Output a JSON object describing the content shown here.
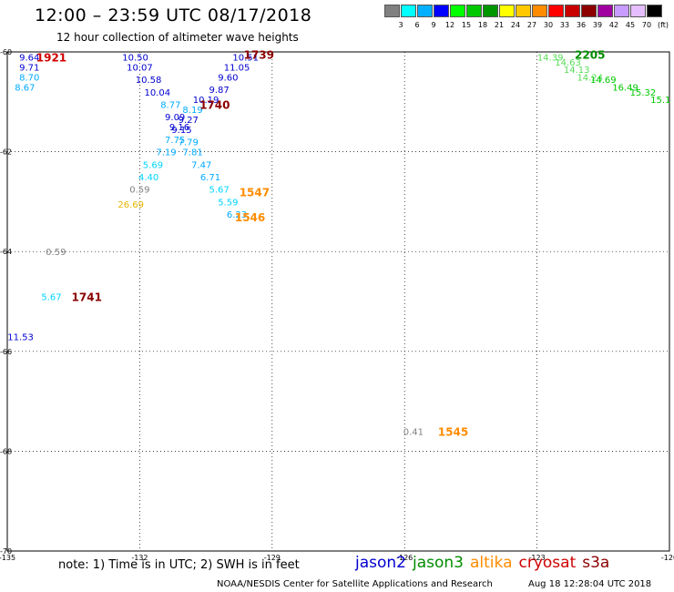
{
  "title": "12:00 – 23:59 UTC 08/17/2018",
  "subtitle": "12 hour collection of altimeter wave heights",
  "colorbar": {
    "unit": "(ft)",
    "colors": [
      "#808080",
      "#00ffff",
      "#00b0ff",
      "#0000ff",
      "#00ff00",
      "#00c800",
      "#009600",
      "#ffff00",
      "#ffc800",
      "#ff8c00",
      "#ff0000",
      "#c80000",
      "#8c0000",
      "#a000a0",
      "#c89bff",
      "#e6beff",
      "#000000"
    ],
    "labels": [
      "3",
      "6",
      "9",
      "12",
      "15",
      "18",
      "21",
      "24",
      "27",
      "30",
      "33",
      "36",
      "39",
      "42",
      "45",
      "70"
    ]
  },
  "note": "note: 1) Time is in UTC; 2) SWH is in feet",
  "legend": [
    {
      "name": "jason2",
      "color": "#0000d0"
    },
    {
      "name": "jason3",
      "color": "#008c00"
    },
    {
      "name": "altika",
      "color": "#ff8c00"
    },
    {
      "name": "cryosat",
      "color": "#d00000"
    },
    {
      "name": "s3a",
      "color": "#8c0000"
    }
  ],
  "credit": "NOAA/NESDIS Center for Satellite Applications and Research",
  "timestamp": "Aug 18 12:28:04 UTC 2018",
  "chart_data": {
    "type": "scatter",
    "xlim": [
      -135,
      -120
    ],
    "ylim": [
      -70,
      -60
    ],
    "xticks": [
      "-135",
      "-132",
      "-129",
      "-126",
      "-123",
      "-120"
    ],
    "yticks": [
      "-60",
      "-62",
      "-64",
      "-66",
      "-68",
      "-70"
    ],
    "grid": true,
    "points": [
      {
        "x": -134.5,
        "y": -60.1,
        "label": "9.64",
        "color": "#0000d0"
      },
      {
        "x": -134.5,
        "y": -60.3,
        "label": "9.71",
        "color": "#0000d0"
      },
      {
        "x": -134.5,
        "y": -60.5,
        "label": "8.70",
        "color": "#00aaff"
      },
      {
        "x": -134.6,
        "y": -60.7,
        "label": "8.67",
        "color": "#00aaff"
      },
      {
        "x": -132.1,
        "y": -60.1,
        "label": "10.50",
        "color": "#0000d0"
      },
      {
        "x": -132.0,
        "y": -60.3,
        "label": "10.07",
        "color": "#0000d0"
      },
      {
        "x": -131.8,
        "y": -60.55,
        "label": "10.58",
        "color": "#0000d0"
      },
      {
        "x": -131.6,
        "y": -60.8,
        "label": "10.04",
        "color": "#0000d0"
      },
      {
        "x": -131.3,
        "y": -61.05,
        "label": "8.77",
        "color": "#00aaff"
      },
      {
        "x": -131.2,
        "y": -61.3,
        "label": "9.09",
        "color": "#0000d0"
      },
      {
        "x": -131.1,
        "y": -61.5,
        "label": "9.16",
        "color": "#0000d0"
      },
      {
        "x": -131.2,
        "y": -61.75,
        "label": "7.75",
        "color": "#00aaff"
      },
      {
        "x": -131.4,
        "y": -62.0,
        "label": "7.19",
        "color": "#00aaff"
      },
      {
        "x": -131.7,
        "y": -62.25,
        "label": "5.69",
        "color": "#00d4ff"
      },
      {
        "x": -131.8,
        "y": -62.5,
        "label": "4.40",
        "color": "#00d4ff"
      },
      {
        "x": -132.0,
        "y": -62.75,
        "label": "0.59",
        "color": "#808080"
      },
      {
        "x": -132.2,
        "y": -63.05,
        "label": "26.69",
        "color": "#e8b400"
      },
      {
        "x": -129.6,
        "y": -60.1,
        "label": "10.51",
        "color": "#0000d0"
      },
      {
        "x": -129.8,
        "y": -60.3,
        "label": "11.05",
        "color": "#0000d0"
      },
      {
        "x": -130.0,
        "y": -60.5,
        "label": "9.60",
        "color": "#0000d0"
      },
      {
        "x": -130.2,
        "y": -60.75,
        "label": "9.87",
        "color": "#0000d0"
      },
      {
        "x": -130.5,
        "y": -60.95,
        "label": "10.19",
        "color": "#0000d0"
      },
      {
        "x": -130.8,
        "y": -61.15,
        "label": "8.19",
        "color": "#00aaff"
      },
      {
        "x": -130.9,
        "y": -61.35,
        "label": "9.27",
        "color": "#0000d0"
      },
      {
        "x": -131.05,
        "y": -61.55,
        "label": "9.15",
        "color": "#0000d0"
      },
      {
        "x": -130.9,
        "y": -61.8,
        "label": "7.79",
        "color": "#00aaff"
      },
      {
        "x": -130.8,
        "y": -62.0,
        "label": "7.81",
        "color": "#00aaff"
      },
      {
        "x": -130.6,
        "y": -62.25,
        "label": "7.47",
        "color": "#00aaff"
      },
      {
        "x": -130.4,
        "y": -62.5,
        "label": "6.71",
        "color": "#00aaff"
      },
      {
        "x": -130.2,
        "y": -62.75,
        "label": "5.67",
        "color": "#00d4ff"
      },
      {
        "x": -130.0,
        "y": -63.0,
        "label": "5.59",
        "color": "#00d4ff"
      },
      {
        "x": -129.8,
        "y": -63.25,
        "label": "6.23",
        "color": "#00aaff"
      },
      {
        "x": -133.9,
        "y": -64.0,
        "label": "0.59",
        "color": "#808080"
      },
      {
        "x": -134.0,
        "y": -64.9,
        "label": "5.67",
        "color": "#00d4ff"
      },
      {
        "x": -134.7,
        "y": -65.7,
        "label": "11.53",
        "color": "#0000d0"
      },
      {
        "x": -125.8,
        "y": -67.6,
        "label": "0.41",
        "color": "#808080"
      },
      {
        "x": -122.7,
        "y": -60.1,
        "label": "14.39",
        "color": "#55dd55"
      },
      {
        "x": -122.3,
        "y": -60.2,
        "label": "14.63",
        "color": "#55dd55"
      },
      {
        "x": -122.1,
        "y": -60.35,
        "label": "14.13",
        "color": "#55dd55"
      },
      {
        "x": -121.8,
        "y": -60.5,
        "label": "14.24",
        "color": "#55dd55"
      },
      {
        "x": -121.5,
        "y": -60.55,
        "label": "14.69",
        "color": "#00c800"
      },
      {
        "x": -121.0,
        "y": -60.7,
        "label": "16.49",
        "color": "#00c800"
      },
      {
        "x": -120.6,
        "y": -60.8,
        "label": "15.32",
        "color": "#00c800"
      },
      {
        "x": -120.2,
        "y": -60.95,
        "label": "15.1",
        "color": "#00c800"
      }
    ],
    "time_labels": [
      {
        "x": -134.0,
        "y": -60.1,
        "label": "1921",
        "color": "#d00000"
      },
      {
        "x": -129.3,
        "y": -60.05,
        "label": "1739",
        "color": "#8c0000"
      },
      {
        "x": -130.3,
        "y": -61.05,
        "label": "1740",
        "color": "#8c0000"
      },
      {
        "x": -129.4,
        "y": -62.8,
        "label": "1547",
        "color": "#ff8c00"
      },
      {
        "x": -129.5,
        "y": -63.3,
        "label": "1546",
        "color": "#ff8c00"
      },
      {
        "x": -133.2,
        "y": -64.9,
        "label": "1741",
        "color": "#8c0000"
      },
      {
        "x": -124.9,
        "y": -67.6,
        "label": "1545",
        "color": "#ff8c00"
      },
      {
        "x": -121.8,
        "y": -60.05,
        "label": "2205",
        "color": "#008c00"
      }
    ]
  }
}
